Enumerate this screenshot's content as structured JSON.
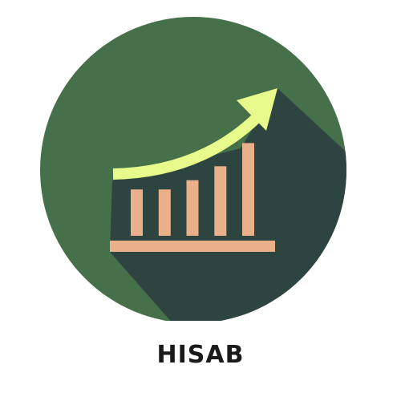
{
  "brand": {
    "name": "HISAB",
    "icon": "growth-chart-icon"
  },
  "palette": {
    "circle": "#467049",
    "shadow": "#2e4440",
    "bars": "#e9b08a",
    "arrow": "#e8fa8c",
    "text": "#1a1a1a"
  },
  "chart_data": {
    "type": "bar",
    "categories": [
      "",
      "",
      "",
      "",
      ""
    ],
    "values": [
      2,
      2,
      2.4,
      3,
      4
    ],
    "title": "",
    "xlabel": "",
    "ylabel": "",
    "ylim": [
      0,
      4.5
    ],
    "trend_arrow": true
  }
}
